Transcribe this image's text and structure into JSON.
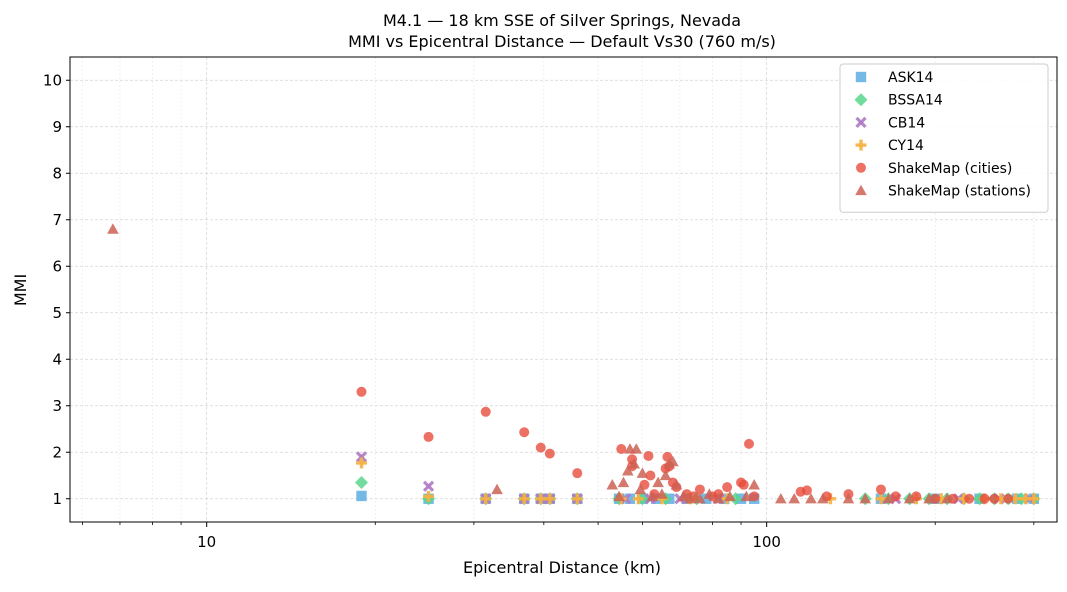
{
  "chart_data": {
    "type": "scatter",
    "title": "M4.1 — 18 km SSE of Silver Springs, Nevada",
    "subtitle": "MMI vs Epicentral Distance — Default Vs30 (760 m/s)",
    "xlabel": "Epicentral Distance (km)",
    "ylabel": "MMI",
    "xscale": "log",
    "xlim": [
      5.7,
      330
    ],
    "ylim": [
      0.5,
      10.5
    ],
    "x_ticks": [
      {
        "value": 10,
        "label": "10"
      },
      {
        "value": 100,
        "label": "100"
      }
    ],
    "y_ticks": [
      1,
      2,
      3,
      4,
      5,
      6,
      7,
      8,
      9,
      10
    ],
    "grid": true,
    "legend_position": "top-right",
    "series": [
      {
        "name": "ASK14",
        "marker": "square",
        "color": "#5dade2",
        "points": [
          [
            18.9,
            1.06
          ],
          [
            24.9,
            1.0
          ],
          [
            31.5,
            1.0
          ],
          [
            36.9,
            1.0
          ],
          [
            39.5,
            1.0
          ],
          [
            41.0,
            1.0
          ],
          [
            45.9,
            1.0
          ],
          [
            54.5,
            1.0
          ],
          [
            57.0,
            1.0
          ],
          [
            60.0,
            1.0
          ],
          [
            63.5,
            1.0
          ],
          [
            67.0,
            1.0
          ],
          [
            72.0,
            1.0
          ],
          [
            78.0,
            1.0
          ],
          [
            84.0,
            1.0
          ],
          [
            90.0,
            1.0
          ],
          [
            95.0,
            1.0
          ],
          [
            160.0,
            1.0
          ],
          [
            200.0,
            1.0
          ],
          [
            240.0,
            1.0
          ],
          [
            280.0,
            1.0
          ],
          [
            300.0,
            1.0
          ]
        ]
      },
      {
        "name": "BSSA14",
        "marker": "diamond",
        "color": "#58d68d",
        "points": [
          [
            18.9,
            1.35
          ],
          [
            24.9,
            1.0
          ],
          [
            31.5,
            1.0
          ],
          [
            36.9,
            1.0
          ],
          [
            39.5,
            1.0
          ],
          [
            41.0,
            1.0
          ],
          [
            45.9,
            1.0
          ],
          [
            54.5,
            1.0
          ],
          [
            60.0,
            1.0
          ],
          [
            66.0,
            1.0
          ],
          [
            75.0,
            1.0
          ],
          [
            88.0,
            1.0
          ],
          [
            150.0,
            1.0
          ],
          [
            165.0,
            1.0
          ],
          [
            180.0,
            1.0
          ],
          [
            195.0,
            1.0
          ],
          [
            210.0,
            1.0
          ],
          [
            225.0,
            1.0
          ],
          [
            240.0,
            1.0
          ],
          [
            255.0,
            1.0
          ],
          [
            270.0,
            1.0
          ],
          [
            285.0,
            1.0
          ],
          [
            300.0,
            1.0
          ]
        ]
      },
      {
        "name": "CB14",
        "marker": "x",
        "color": "#af7ac5",
        "points": [
          [
            18.9,
            1.9
          ],
          [
            24.9,
            1.27
          ],
          [
            31.5,
            1.0
          ],
          [
            36.9,
            1.0
          ],
          [
            39.5,
            1.0
          ],
          [
            41.0,
            1.0
          ],
          [
            45.9,
            1.0
          ],
          [
            56.0,
            1.0
          ],
          [
            62.0,
            1.0
          ],
          [
            70.0,
            1.0
          ],
          [
            82.0,
            1.0
          ],
          [
            170.0,
            1.0
          ],
          [
            220.0,
            1.0
          ],
          [
            260.0,
            1.0
          ],
          [
            295.0,
            1.0
          ]
        ]
      },
      {
        "name": "CY14",
        "marker": "plus",
        "color": "#f5b041",
        "points": [
          [
            18.9,
            1.77
          ],
          [
            24.9,
            1.05
          ],
          [
            31.5,
            1.0
          ],
          [
            36.9,
            1.0
          ],
          [
            39.5,
            1.0
          ],
          [
            41.0,
            1.0
          ],
          [
            45.9,
            1.0
          ],
          [
            55.0,
            1.0
          ],
          [
            59.0,
            1.0
          ],
          [
            65.0,
            1.0
          ],
          [
            73.0,
            1.0
          ],
          [
            85.0,
            1.0
          ],
          [
            130.0,
            1.0
          ],
          [
            160.0,
            1.0
          ],
          [
            185.0,
            1.0
          ],
          [
            205.0,
            1.0
          ],
          [
            225.0,
            1.0
          ],
          [
            245.0,
            1.0
          ],
          [
            262.0,
            1.0
          ],
          [
            278.0,
            1.0
          ],
          [
            290.0,
            1.0
          ],
          [
            300.0,
            1.0
          ]
        ]
      },
      {
        "name": "ShakeMap (cities)",
        "marker": "circle",
        "color": "#e74c3c",
        "points": [
          [
            18.9,
            3.3
          ],
          [
            24.9,
            2.33
          ],
          [
            31.5,
            2.87
          ],
          [
            36.9,
            2.43
          ],
          [
            39.5,
            2.1
          ],
          [
            41.0,
            1.97
          ],
          [
            45.9,
            1.55
          ],
          [
            55.0,
            2.07
          ],
          [
            57.5,
            1.85
          ],
          [
            57.5,
            1.7
          ],
          [
            60.5,
            1.3
          ],
          [
            61.5,
            1.92
          ],
          [
            62.0,
            1.5
          ],
          [
            63.0,
            1.1
          ],
          [
            66.0,
            1.65
          ],
          [
            66.5,
            1.9
          ],
          [
            67.0,
            1.7
          ],
          [
            68.0,
            1.35
          ],
          [
            69.0,
            1.25
          ],
          [
            72.0,
            1.1
          ],
          [
            74.0,
            1.05
          ],
          [
            76.0,
            1.2
          ],
          [
            80.0,
            1.05
          ],
          [
            82.0,
            1.1
          ],
          [
            85.0,
            1.25
          ],
          [
            90.0,
            1.35
          ],
          [
            91.0,
            1.3
          ],
          [
            93.0,
            2.18
          ],
          [
            95.0,
            1.05
          ],
          [
            115.0,
            1.15
          ],
          [
            118.0,
            1.18
          ],
          [
            128.0,
            1.05
          ],
          [
            140.0,
            1.1
          ],
          [
            160.0,
            1.2
          ],
          [
            170.0,
            1.05
          ],
          [
            185.0,
            1.05
          ],
          [
            200.0,
            1.0
          ],
          [
            215.0,
            1.0
          ],
          [
            230.0,
            1.0
          ],
          [
            245.0,
            1.0
          ],
          [
            255.0,
            1.0
          ],
          [
            270.0,
            1.0
          ]
        ]
      },
      {
        "name": "ShakeMap (stations)",
        "marker": "triangle",
        "color": "#cd6155",
        "points": [
          [
            6.8,
            6.8
          ],
          [
            33.0,
            1.2
          ],
          [
            53.0,
            1.3
          ],
          [
            54.5,
            1.05
          ],
          [
            55.5,
            1.35
          ],
          [
            56.5,
            1.6
          ],
          [
            57.0,
            2.07
          ],
          [
            58.0,
            1.75
          ],
          [
            58.5,
            2.07
          ],
          [
            59.5,
            1.2
          ],
          [
            60.0,
            1.55
          ],
          [
            62.5,
            1.05
          ],
          [
            64.0,
            1.35
          ],
          [
            65.0,
            1.1
          ],
          [
            66.0,
            1.5
          ],
          [
            67.0,
            1.75
          ],
          [
            68.0,
            1.8
          ],
          [
            69.0,
            1.3
          ],
          [
            71.0,
            1.05
          ],
          [
            73.0,
            1.0
          ],
          [
            76.0,
            1.0
          ],
          [
            79.0,
            1.1
          ],
          [
            82.0,
            1.0
          ],
          [
            86.0,
            1.05
          ],
          [
            92.0,
            1.05
          ],
          [
            95.0,
            1.3
          ],
          [
            106.0,
            1.0
          ],
          [
            112.0,
            1.0
          ],
          [
            120.0,
            1.0
          ],
          [
            126.0,
            1.0
          ],
          [
            140.0,
            1.0
          ],
          [
            150.0,
            1.0
          ],
          [
            165.0,
            1.0
          ],
          [
            180.0,
            1.0
          ],
          [
            195.0,
            1.0
          ],
          [
            210.0,
            1.0
          ]
        ]
      }
    ]
  }
}
